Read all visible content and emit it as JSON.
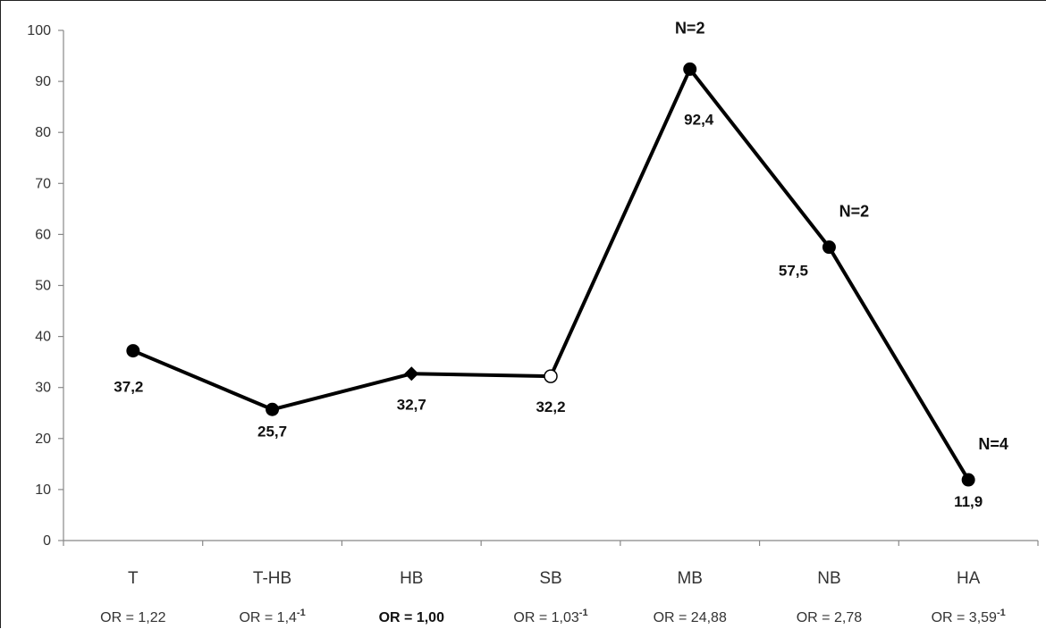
{
  "chart_data": {
    "type": "line",
    "categories": [
      "T",
      "T-HB",
      "HB",
      "SB",
      "MB",
      "NB",
      "HA"
    ],
    "values": [
      37.2,
      25.7,
      32.7,
      32.2,
      92.4,
      57.5,
      11.9
    ],
    "data_labels": [
      "37,2",
      "25,7",
      "32,7",
      "32,2",
      "92,4",
      "57,5",
      "11,9"
    ],
    "marker_styles": [
      "filled-circle",
      "filled-circle",
      "filled-diamond",
      "open-circle",
      "filled-circle",
      "filled-circle",
      "filled-circle"
    ],
    "or_labels": [
      {
        "text": "OR = 1,22",
        "sup": "",
        "bold": false
      },
      {
        "text": "OR = 1,4",
        "sup": "-1",
        "bold": false
      },
      {
        "text": "OR = 1,00",
        "sup": "",
        "bold": true
      },
      {
        "text": "OR = 1,03",
        "sup": "-1",
        "bold": false
      },
      {
        "text": "OR = 24,88",
        "sup": "",
        "bold": false
      },
      {
        "text": "OR = 2,78",
        "sup": "",
        "bold": false
      },
      {
        "text": "OR = 3,59",
        "sup": "-1",
        "bold": false
      }
    ],
    "annotations": [
      {
        "category": "MB",
        "text": "N=2"
      },
      {
        "category": "NB",
        "text": "N=2"
      },
      {
        "category": "HA",
        "text": "N=4"
      }
    ],
    "y_ticks": [
      "0",
      "10",
      "20",
      "30",
      "40",
      "50",
      "60",
      "70",
      "80",
      "90",
      "100"
    ],
    "ylim": [
      0,
      100
    ],
    "y_step": 10,
    "grid": false,
    "legend": "none",
    "title": "",
    "xlabel": "",
    "ylabel": "",
    "colors": {
      "line": "#000000",
      "axis": "#888888",
      "text": "#333333"
    }
  }
}
